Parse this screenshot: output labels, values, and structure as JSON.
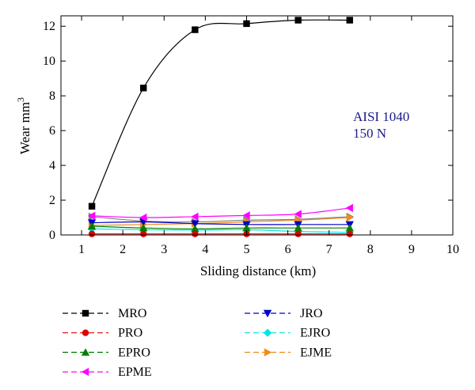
{
  "chart_data": {
    "type": "line",
    "xlabel": "Sliding distance (km)",
    "ylabel": "Wear mm",
    "ylabel_sup": "3",
    "xlim": [
      0.5,
      10
    ],
    "ylim": [
      0,
      12.6
    ],
    "xticks": [
      1,
      2,
      3,
      4,
      5,
      6,
      7,
      8,
      9,
      10
    ],
    "yticks": [
      0,
      2,
      4,
      6,
      8,
      10,
      12
    ],
    "annotation": [
      "AISI 1040",
      "150 N"
    ],
    "grid": false,
    "legend_position": "bottom",
    "x": [
      1.25,
      2.5,
      3.75,
      5.0,
      6.25,
      7.5
    ],
    "series": [
      {
        "name": "MRO",
        "color": "#000000",
        "marker": "square",
        "values": [
          1.65,
          8.45,
          11.8,
          12.15,
          12.35,
          12.35
        ]
      },
      {
        "name": "PRO",
        "color": "#e00000",
        "marker": "circle",
        "values": [
          0.06,
          0.06,
          0.06,
          0.06,
          0.06,
          0.06
        ]
      },
      {
        "name": "EPRO",
        "color": "#008000",
        "marker": "triangle-up",
        "values": [
          0.5,
          0.4,
          0.35,
          0.4,
          0.4,
          0.4
        ]
      },
      {
        "name": "EPME",
        "color": "#ff00ff",
        "marker": "triangle-left",
        "values": [
          1.1,
          1.0,
          1.05,
          1.12,
          1.2,
          1.55
        ]
      },
      {
        "name": "JRO",
        "color": "#0000c8",
        "marker": "triangle-down",
        "values": [
          0.7,
          0.75,
          0.65,
          0.6,
          0.6,
          0.6
        ]
      },
      {
        "name": "EJRO",
        "color": "#00e5e5",
        "marker": "diamond",
        "values": [
          0.35,
          0.3,
          0.28,
          0.3,
          0.2,
          0.15
        ]
      },
      {
        "name": "EJME",
        "color": "#f08c1e",
        "marker": "triangle-right",
        "values": [
          0.55,
          0.6,
          0.65,
          0.75,
          0.85,
          1.0
        ]
      },
      {
        "name": "",
        "color": "#7f7f7f",
        "marker": "triangle-right",
        "values": [
          1.05,
          0.8,
          0.75,
          0.85,
          0.9,
          1.05
        ]
      }
    ]
  }
}
